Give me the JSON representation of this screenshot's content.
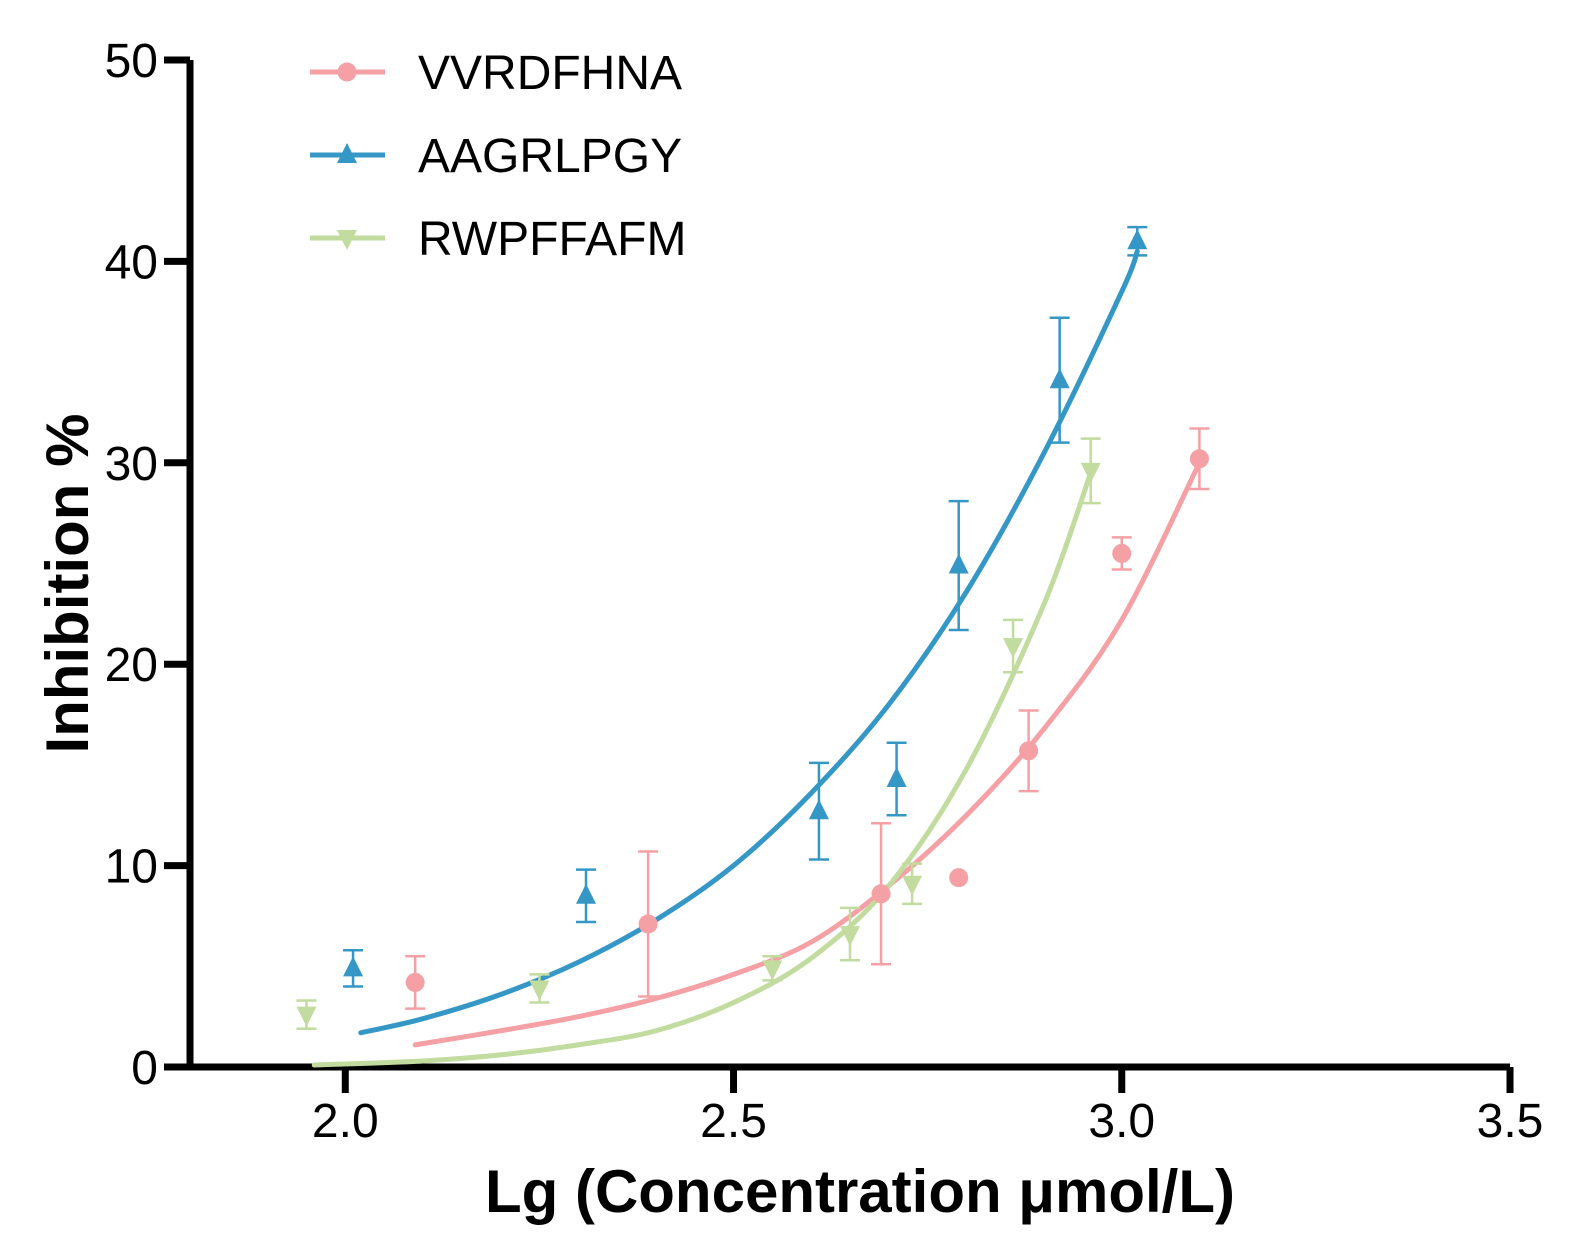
{
  "chart_data": {
    "type": "scatter",
    "title": "",
    "xlabel": "Lg (Concentration μmol/L)",
    "ylabel": "Inhibition %",
    "xlim": [
      1.8,
      3.5
    ],
    "ylim": [
      0,
      50
    ],
    "xticks": [
      2.0,
      2.5,
      3.0,
      3.5
    ],
    "xtick_labels": [
      "2.0",
      "2.5",
      "3.0",
      "3.5"
    ],
    "yticks": [
      0,
      10,
      20,
      30,
      40,
      50
    ],
    "ytick_labels": [
      "0",
      "10",
      "20",
      "30",
      "40",
      "50"
    ],
    "grid": false,
    "legend_position": "top-left",
    "series": [
      {
        "name": "VVRDFHNA",
        "color": "#f4a0a4",
        "marker": "circle",
        "points": [
          {
            "x": 2.09,
            "y": 4.2,
            "err": 1.3
          },
          {
            "x": 2.39,
            "y": 7.1,
            "err": 3.6
          },
          {
            "x": 2.69,
            "y": 8.6,
            "err": 3.5
          },
          {
            "x": 2.79,
            "y": 9.4,
            "err": 0
          },
          {
            "x": 2.88,
            "y": 15.7,
            "err": 2.0
          },
          {
            "x": 3.0,
            "y": 25.5,
            "err": 0.8
          },
          {
            "x": 3.1,
            "y": 30.2,
            "err": 1.5
          }
        ],
        "curve": [
          [
            2.09,
            1.1
          ],
          [
            2.2,
            1.8
          ],
          [
            2.3,
            2.5
          ],
          [
            2.4,
            3.4
          ],
          [
            2.5,
            4.6
          ],
          [
            2.6,
            6.2
          ],
          [
            2.7,
            9.0
          ],
          [
            2.8,
            12.5
          ],
          [
            2.9,
            16.8
          ],
          [
            3.0,
            22.2
          ],
          [
            3.1,
            30.0
          ]
        ]
      },
      {
        "name": "AAGRLPGY",
        "color": "#3497c6",
        "marker": "triangle-up",
        "points": [
          {
            "x": 2.01,
            "y": 4.9,
            "err": 0.9
          },
          {
            "x": 2.31,
            "y": 8.5,
            "err": 1.3
          },
          {
            "x": 2.61,
            "y": 12.7,
            "err": 2.4
          },
          {
            "x": 2.71,
            "y": 14.3,
            "err": 1.8
          },
          {
            "x": 2.79,
            "y": 24.9,
            "err": 3.2
          },
          {
            "x": 2.92,
            "y": 34.1,
            "err": 3.1
          },
          {
            "x": 3.02,
            "y": 41.0,
            "err": 0.7
          }
        ],
        "curve": [
          [
            2.02,
            1.7
          ],
          [
            2.1,
            2.4
          ],
          [
            2.2,
            3.6
          ],
          [
            2.3,
            5.2
          ],
          [
            2.4,
            7.3
          ],
          [
            2.5,
            10.0
          ],
          [
            2.6,
            13.6
          ],
          [
            2.7,
            18.0
          ],
          [
            2.8,
            23.6
          ],
          [
            2.9,
            30.5
          ],
          [
            3.0,
            38.5
          ],
          [
            3.02,
            40.5
          ]
        ]
      },
      {
        "name": "RWPFFAFM",
        "color": "#c2db9e",
        "marker": "triangle-down",
        "points": [
          {
            "x": 1.95,
            "y": 2.6,
            "err": 0.7
          },
          {
            "x": 2.25,
            "y": 3.9,
            "err": 0.7
          },
          {
            "x": 2.55,
            "y": 4.9,
            "err": 0.6
          },
          {
            "x": 2.65,
            "y": 6.6,
            "err": 1.3
          },
          {
            "x": 2.73,
            "y": 9.1,
            "err": 1.0
          },
          {
            "x": 2.86,
            "y": 20.9,
            "err": 1.3
          },
          {
            "x": 2.96,
            "y": 29.6,
            "err": 1.6
          }
        ],
        "curve": [
          [
            1.96,
            0.1
          ],
          [
            2.1,
            0.3
          ],
          [
            2.2,
            0.6
          ],
          [
            2.3,
            1.1
          ],
          [
            2.4,
            1.8
          ],
          [
            2.5,
            3.2
          ],
          [
            2.6,
            5.4
          ],
          [
            2.7,
            9.0
          ],
          [
            2.8,
            14.8
          ],
          [
            2.9,
            23.0
          ],
          [
            2.96,
            29.5
          ]
        ]
      }
    ]
  }
}
